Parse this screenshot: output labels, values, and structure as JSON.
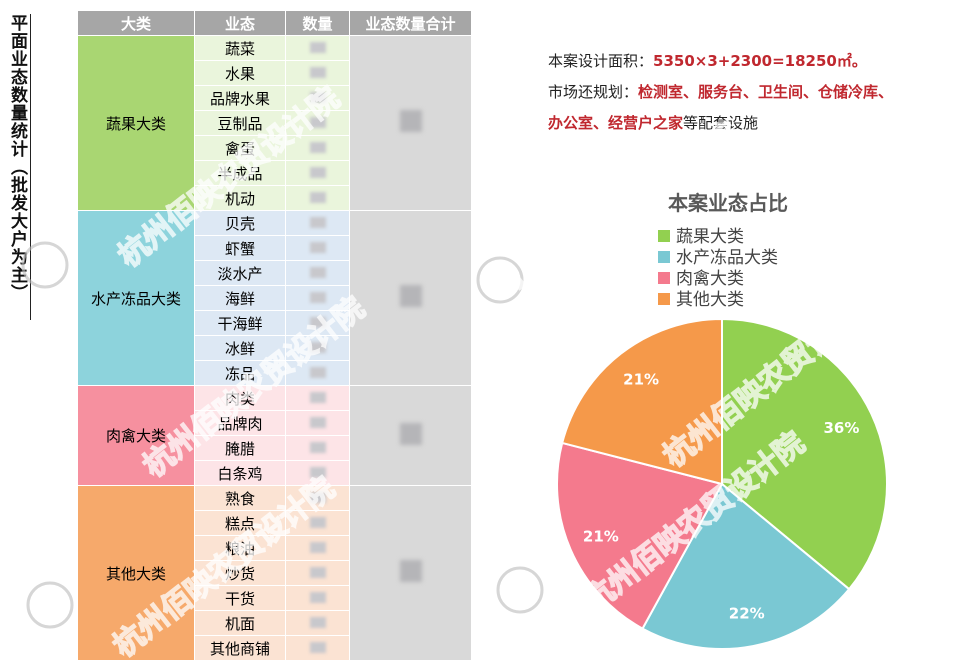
{
  "side_title": "平面业态数量统计（批发大户为主）",
  "table": {
    "header": [
      "大类",
      "业态",
      "数量",
      "业态数量合计"
    ],
    "groups": [
      {
        "category": "蔬果大类",
        "items": [
          "蔬菜",
          "水果",
          "品牌水果",
          "豆制品",
          "禽蛋",
          "半成品",
          "机动"
        ]
      },
      {
        "category": "水产冻品大类",
        "items": [
          "贝壳",
          "虾蟹",
          "淡水产",
          "海鲜",
          "干海鲜",
          "冰鲜",
          "冻品"
        ]
      },
      {
        "category": "肉禽大类",
        "items": [
          "肉类",
          "品牌肉",
          "腌腊",
          "白条鸡"
        ]
      },
      {
        "category": "其他大类",
        "items": [
          "熟食",
          "糕点",
          "粮油",
          "炒货",
          "干货",
          "机面",
          "其他商铺"
        ]
      }
    ]
  },
  "notes": [
    [
      "本案设计面积：",
      "5350×3+2300=18250㎡。"
    ],
    [
      "市场还规划：",
      "检测室、服务台、卫生间、仓储冷库、"
    ],
    [
      "办公室、经营户之家",
      "等配套设施"
    ]
  ],
  "watermark": "杭州佰映农贸设计院",
  "chart_data": {
    "type": "pie",
    "title": "本案业态占比",
    "categories": [
      "蔬果大类",
      "水产冻品大类",
      "肉禽大类",
      "其他大类"
    ],
    "values": [
      36,
      22,
      21,
      21
    ],
    "value_labels": [
      "36%",
      "22%",
      "21%",
      "21%"
    ],
    "colors": [
      "#92d050",
      "#7ac8d3",
      "#f47a8d",
      "#f5994a"
    ]
  }
}
